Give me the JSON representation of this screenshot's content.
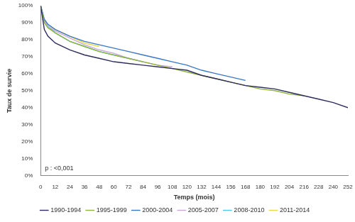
{
  "chart_data": {
    "type": "line",
    "x_label": "Temps (mois)",
    "y_label": "Taux de survie",
    "annotation": "p : <0,001",
    "x": [
      0,
      3,
      6,
      12,
      24,
      36,
      48,
      60,
      72,
      84,
      96,
      108,
      120,
      132,
      144,
      156,
      168,
      180,
      192,
      204,
      216,
      228,
      240,
      252
    ],
    "series": [
      {
        "name": "1990-1994",
        "color": "#2e2b5f",
        "values": [
          100,
          86,
          82,
          78,
          74,
          71,
          69,
          67,
          66,
          65,
          64,
          63,
          62,
          59,
          57,
          55,
          53,
          52,
          51,
          49,
          47,
          45,
          43,
          40
        ]
      },
      {
        "name": "1995-1999",
        "color": "#8db33a",
        "values": [
          100,
          90,
          87,
          84,
          79,
          76,
          73,
          71,
          69,
          67,
          65,
          63,
          61,
          59,
          57,
          55,
          53,
          51,
          50,
          48,
          47,
          null,
          null,
          null
        ]
      },
      {
        "name": "2000-2004",
        "color": "#3b78c4",
        "values": [
          100,
          92,
          89,
          86,
          82,
          79,
          77,
          75,
          73,
          71,
          69,
          67,
          65,
          62,
          60,
          58,
          56,
          null,
          null,
          null,
          null,
          null,
          null,
          null
        ]
      },
      {
        "name": "2005-2007",
        "color": "#c8a8d8",
        "values": [
          100,
          91,
          88,
          85,
          81,
          77,
          74,
          72,
          69,
          67,
          65,
          64,
          null,
          null,
          null,
          null,
          null,
          null,
          null,
          null,
          null,
          null,
          null,
          null
        ]
      },
      {
        "name": "2008-2010",
        "color": "#4fc8e8",
        "values": [
          100,
          91,
          88,
          84,
          79,
          76,
          73,
          71,
          69,
          67,
          null,
          null,
          null,
          null,
          null,
          null,
          null,
          null,
          null,
          null,
          null,
          null,
          null,
          null
        ]
      },
      {
        "name": "2011-2014",
        "color": "#e8d84a",
        "values": [
          100,
          92,
          89,
          86,
          82,
          78,
          76,
          null,
          null,
          null,
          null,
          null,
          null,
          null,
          null,
          null,
          null,
          null,
          null,
          null,
          null,
          null,
          null,
          null
        ]
      }
    ],
    "xlim": [
      0,
      252
    ],
    "xticks": [
      0,
      12,
      24,
      36,
      48,
      60,
      72,
      84,
      96,
      108,
      120,
      132,
      144,
      156,
      168,
      180,
      192,
      204,
      216,
      228,
      240,
      252
    ],
    "ylim": [
      0,
      100
    ],
    "yticks": [
      {
        "value": 0,
        "label": "0%"
      },
      {
        "value": 10,
        "label": "10%"
      },
      {
        "value": 20,
        "label": "20%"
      },
      {
        "value": 30,
        "label": "30%"
      },
      {
        "value": 40,
        "label": "40%"
      },
      {
        "value": 50,
        "label": "50%"
      },
      {
        "value": 60,
        "label": "60%"
      },
      {
        "value": 70,
        "label": "70%"
      },
      {
        "value": 80,
        "label": "80%"
      },
      {
        "value": 90,
        "label": "90%"
      },
      {
        "value": 100,
        "label": "100%"
      }
    ],
    "grid": false,
    "legend": "bottom"
  }
}
